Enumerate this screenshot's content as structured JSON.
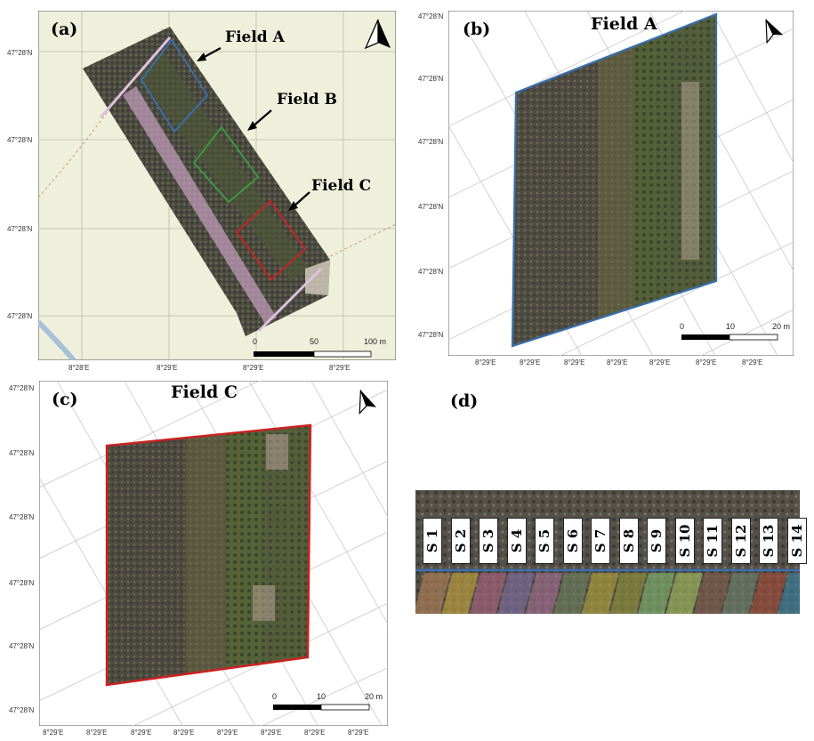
{
  "panels": {
    "a": {
      "label": "(a)",
      "annotations": [
        "Field A",
        "Field B",
        "Field C"
      ],
      "lat_labels": [
        "47°28'N",
        "47°28'N",
        "47°28'N",
        "47°28'N"
      ],
      "lon_labels": [
        "8°28'E",
        "8°29'E",
        "8°29'E",
        "8°29'E"
      ],
      "scale": [
        "0",
        "50",
        "100 m"
      ],
      "field_colors": {
        "A": "#3a6fb0",
        "B": "#3aa040",
        "C": "#d02020"
      }
    },
    "b": {
      "label": "(b)",
      "title": "Field A",
      "lat_labels": [
        "47°28'N",
        "47°28'N",
        "47°28'N",
        "47°28'N",
        "47°28'N",
        "47°28'N"
      ],
      "lon_labels": [
        "8°29'E",
        "8°29'E",
        "8°29'E",
        "8°29'E",
        "8°29'E",
        "8°29'E",
        "8°29'E"
      ],
      "scale": [
        "0",
        "10",
        "20 m"
      ],
      "outline_color": "#3a6fb0"
    },
    "c": {
      "label": "(c)",
      "title": "Field C",
      "lat_labels": [
        "47°28'N",
        "47°28'N",
        "47°28'N",
        "47°28'N",
        "47°28'N",
        "47°28'N"
      ],
      "lon_labels": [
        "8°29'E",
        "8°29'E",
        "8°29'E",
        "8°29'E",
        "8°29'E",
        "8°29'E",
        "8°29'E",
        "8°29'E"
      ],
      "scale": [
        "0",
        "10",
        "20 m"
      ],
      "outline_color": "#d02020"
    },
    "d": {
      "label": "(d)",
      "strips": [
        "S 1",
        "S 2",
        "S 3",
        "S 4",
        "S 5",
        "S 6",
        "S 7",
        "S 8",
        "S 9",
        "S 10",
        "S 11",
        "S 12",
        "S 13",
        "S 14"
      ],
      "strip_colors": [
        "#a87a55",
        "#b89a3c",
        "#a0607a",
        "#7a6a9a",
        "#9a6a8a",
        "#6a7a5a",
        "#a89a3a",
        "#8a8a3a",
        "#7aaa6a",
        "#9ab05a",
        "#7a5a4a",
        "#6a7a6a",
        "#9a4a3a",
        "#3a7a9a"
      ]
    }
  },
  "icons": [
    "north-arrow-icon"
  ]
}
